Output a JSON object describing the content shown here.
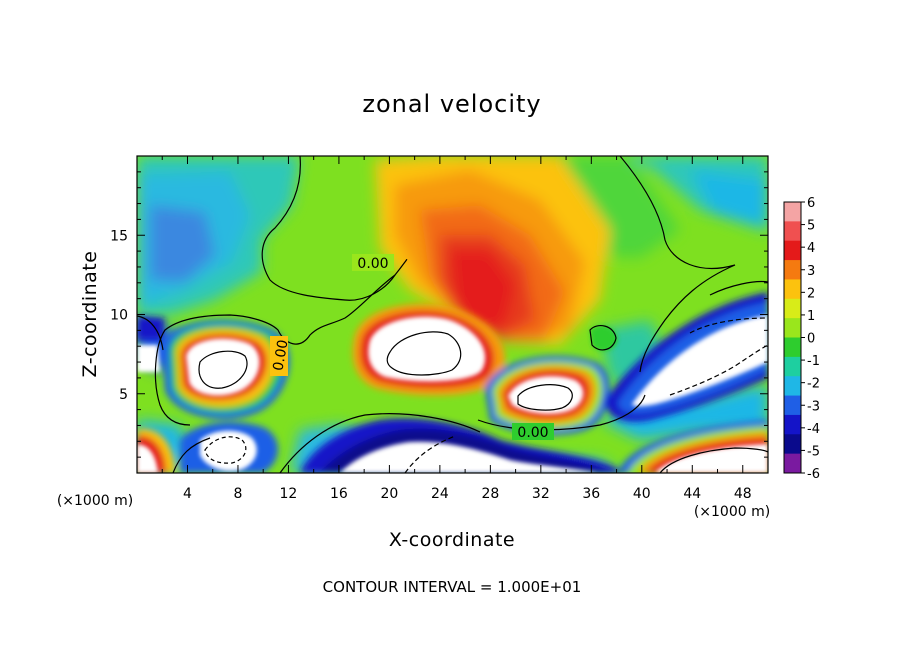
{
  "chart_data": {
    "type": "heatmap",
    "title": "zonal velocity",
    "xlabel": "X-coordinate",
    "ylabel": "Z-coordinate",
    "x_unit": "(×1000 m)",
    "y_unit": "(×1000 m)",
    "xlim": [
      0,
      50
    ],
    "ylim": [
      0,
      20
    ],
    "x_ticks": [
      "4",
      "8",
      "12",
      "16",
      "20",
      "24",
      "28",
      "32",
      "36",
      "40",
      "44",
      "48"
    ],
    "y_ticks": [
      "5",
      "10",
      "15"
    ],
    "colorbar": {
      "labels": [
        "6",
        "5",
        "4",
        "3",
        "2",
        "1",
        "0",
        "-1",
        "-2",
        "-3",
        "-4",
        "-5",
        "-6"
      ],
      "colors": [
        "#f4a4a4",
        "#f05050",
        "#e41a1a",
        "#f57a10",
        "#fcc20e",
        "#d8ec18",
        "#9ae61c",
        "#2ecd2e",
        "#1ecfa0",
        "#1fb7e6",
        "#1f5fe6",
        "#1414c8",
        "#0a0a8c",
        "#7a1aa0"
      ],
      "range": [
        -6,
        6
      ]
    },
    "contour_labels": [
      "0.00",
      "0.00",
      "0.00"
    ],
    "footer": "CONTOUR INTERVAL = 1.000E+01"
  }
}
